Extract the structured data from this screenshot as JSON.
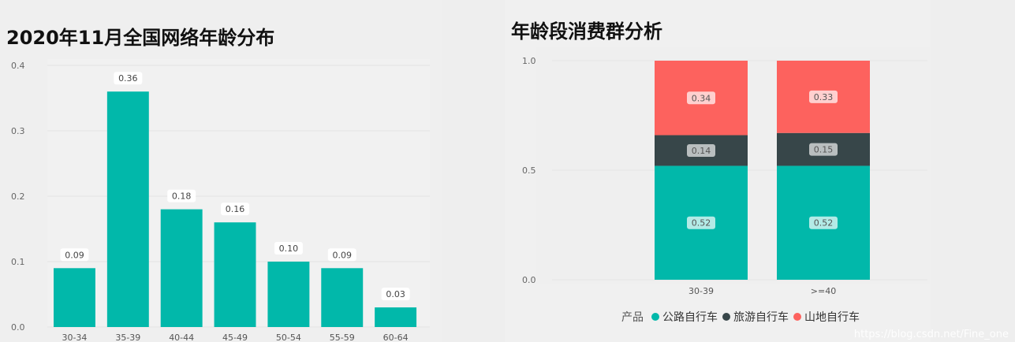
{
  "left_panel": {
    "title": "2020年11月全国网络年龄分布"
  },
  "right_panel": {
    "title": "年龄段消费群分析"
  },
  "legend": {
    "title": "产品",
    "items": [
      {
        "label": "公路自行车",
        "color": "#01b8aa"
      },
      {
        "label": "旅游自行车",
        "color": "#374649"
      },
      {
        "label": "山地自行车",
        "color": "#fd625e"
      }
    ]
  },
  "watermark": "https://blog.csdn.net/Fine_one",
  "chart_data": [
    {
      "type": "bar",
      "title": "2020年11月全国网络年龄分布",
      "categories": [
        "30-34",
        "35-39",
        "40-44",
        "45-49",
        "50-54",
        "55-59",
        "60-64"
      ],
      "values": [
        0.09,
        0.36,
        0.18,
        0.16,
        0.1,
        0.09,
        0.03
      ],
      "data_labels": [
        "0.09",
        "0.36",
        "0.18",
        "0.16",
        "0.10",
        "0.09",
        "0.03"
      ],
      "y_ticks": [
        "0.0",
        "0.1",
        "0.2",
        "0.3",
        "0.4"
      ],
      "ylim": [
        0,
        0.4
      ],
      "bar_color": "#01b8aa",
      "grid": true
    },
    {
      "type": "bar",
      "stacked": true,
      "title": "年龄段消费群分析",
      "categories": [
        "30-39",
        ">=40"
      ],
      "series": [
        {
          "name": "公路自行车",
          "values": [
            0.52,
            0.52
          ],
          "data_labels": [
            "0.52",
            "0.52"
          ],
          "color": "#01b8aa"
        },
        {
          "name": "旅游自行车",
          "values": [
            0.14,
            0.15
          ],
          "data_labels": [
            "0.14",
            "0.15"
          ],
          "color": "#374649"
        },
        {
          "name": "山地自行车",
          "values": [
            0.34,
            0.33
          ],
          "data_labels": [
            "0.34",
            "0.33"
          ],
          "color": "#fd625e"
        }
      ],
      "y_ticks": [
        "0.0",
        "0.5",
        "1.0"
      ],
      "ylim": [
        0,
        1
      ],
      "legend_position": "bottom",
      "grid": true
    }
  ]
}
